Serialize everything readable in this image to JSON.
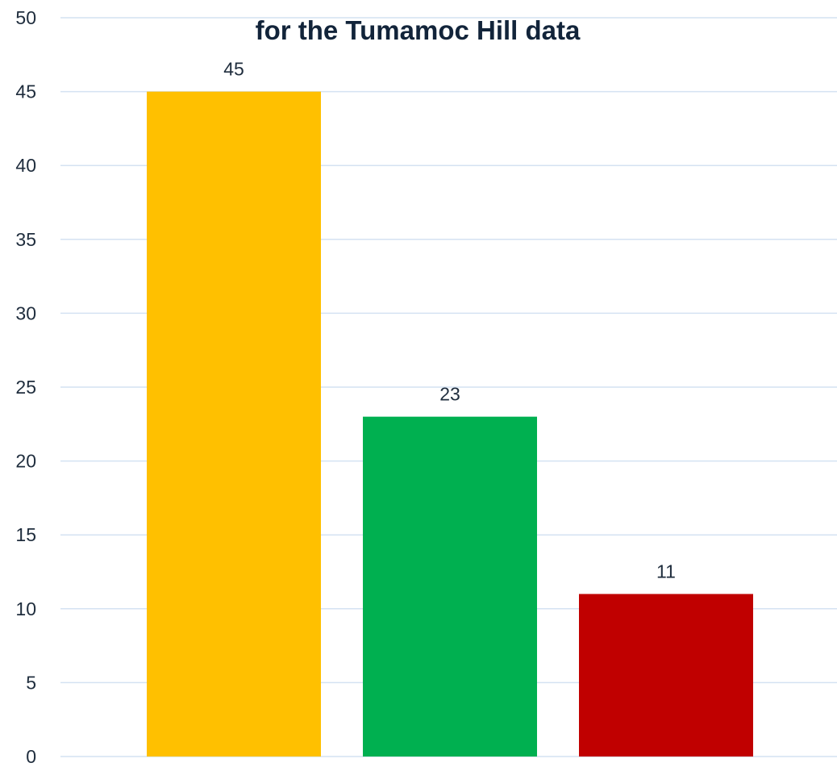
{
  "chart_data": {
    "type": "bar",
    "title_lines": [
      "",
      "for the Tumamoc Hill data"
    ],
    "categories": [
      "",
      "",
      ""
    ],
    "values": [
      45,
      23,
      11
    ],
    "bar_colors": [
      "#FFC000",
      "#00B050",
      "#C00000"
    ],
    "data_labels": [
      "45",
      "23",
      "11"
    ],
    "ylim": [
      0,
      50
    ],
    "yticks": [
      0,
      5,
      10,
      15,
      20,
      25,
      30,
      35,
      40,
      45,
      50
    ],
    "grid": true,
    "legend": "none",
    "gridline_color": "#D4E2F2",
    "title_color": "#12243A"
  }
}
